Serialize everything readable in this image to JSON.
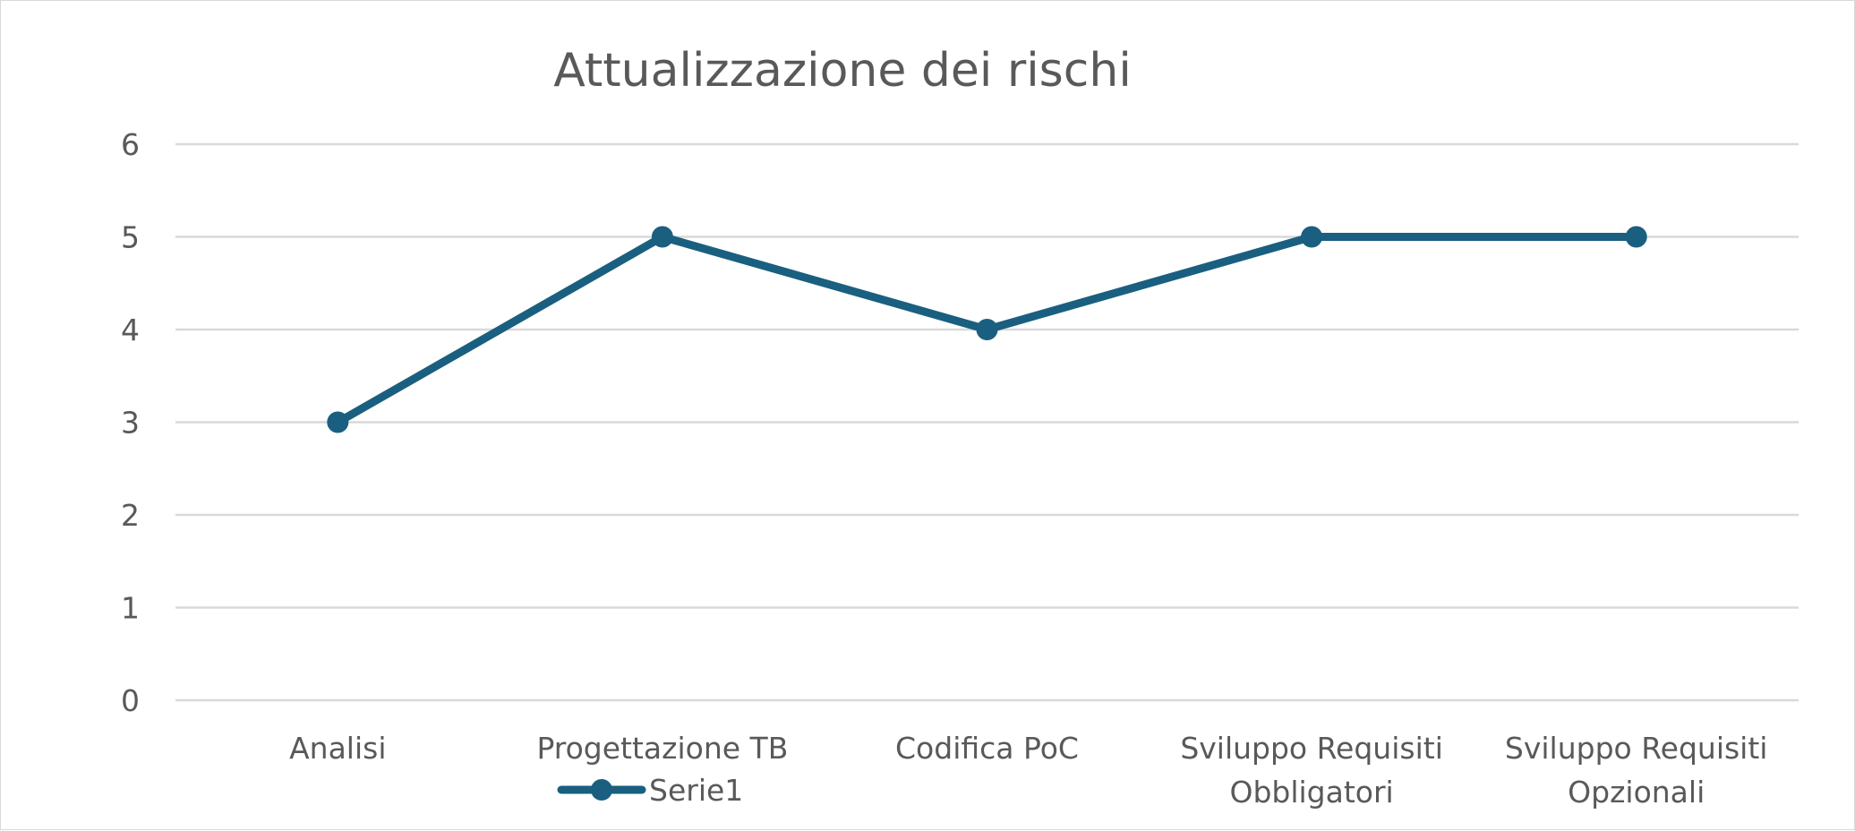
{
  "chart_data": {
    "type": "line",
    "title": "Attualizzazione dei rischi",
    "xlabel": "",
    "ylabel": "",
    "categories": [
      [
        "Analisi"
      ],
      [
        "Progettazione TB"
      ],
      [
        "Codifica PoC"
      ],
      [
        "Sviluppo Requisiti",
        "Obbligatori"
      ],
      [
        "Sviluppo Requisiti",
        "Opzionali"
      ]
    ],
    "series": [
      {
        "name": "Serie1",
        "values": [
          3,
          5,
          4,
          5,
          5
        ],
        "color": "#1a5f80"
      }
    ],
    "ylim": [
      0,
      6
    ],
    "yticks": [
      0,
      1,
      2,
      3,
      4,
      5,
      6
    ],
    "grid": true,
    "legend_position": "bottom"
  }
}
